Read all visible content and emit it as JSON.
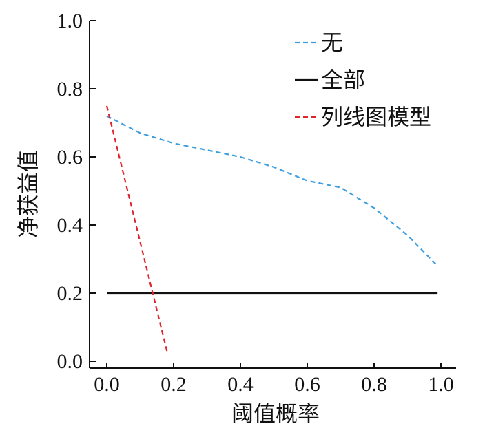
{
  "chart_data": {
    "type": "line",
    "title": "",
    "xlabel": "阈值概率",
    "ylabel": "净获益值",
    "xlim": [
      0.0,
      1.0
    ],
    "ylim": [
      0.0,
      1.0
    ],
    "xticks": [
      "0.0",
      "0.2",
      "0.4",
      "0.6",
      "0.8",
      "1.0"
    ],
    "yticks": [
      "0.0",
      "0.2",
      "0.4",
      "0.6",
      "0.8",
      "1.0"
    ],
    "grid": false,
    "legend_position": "top-right",
    "series": [
      {
        "name": "无",
        "color": "#3d9ee0",
        "style": "dashed",
        "x": [
          0.0,
          0.1,
          0.2,
          0.3,
          0.4,
          0.5,
          0.6,
          0.7,
          0.8,
          0.9,
          0.99
        ],
        "y": [
          0.72,
          0.67,
          0.64,
          0.62,
          0.6,
          0.57,
          0.53,
          0.51,
          0.45,
          0.37,
          0.28
        ]
      },
      {
        "name": "全部",
        "color": "#111111",
        "style": "solid",
        "x": [
          0.0,
          0.99
        ],
        "y": [
          0.2,
          0.2
        ]
      },
      {
        "name": "列线图模型",
        "color": "#e0242c",
        "style": "dashed",
        "x": [
          0.0,
          0.18
        ],
        "y": [
          0.75,
          0.03
        ]
      }
    ]
  }
}
